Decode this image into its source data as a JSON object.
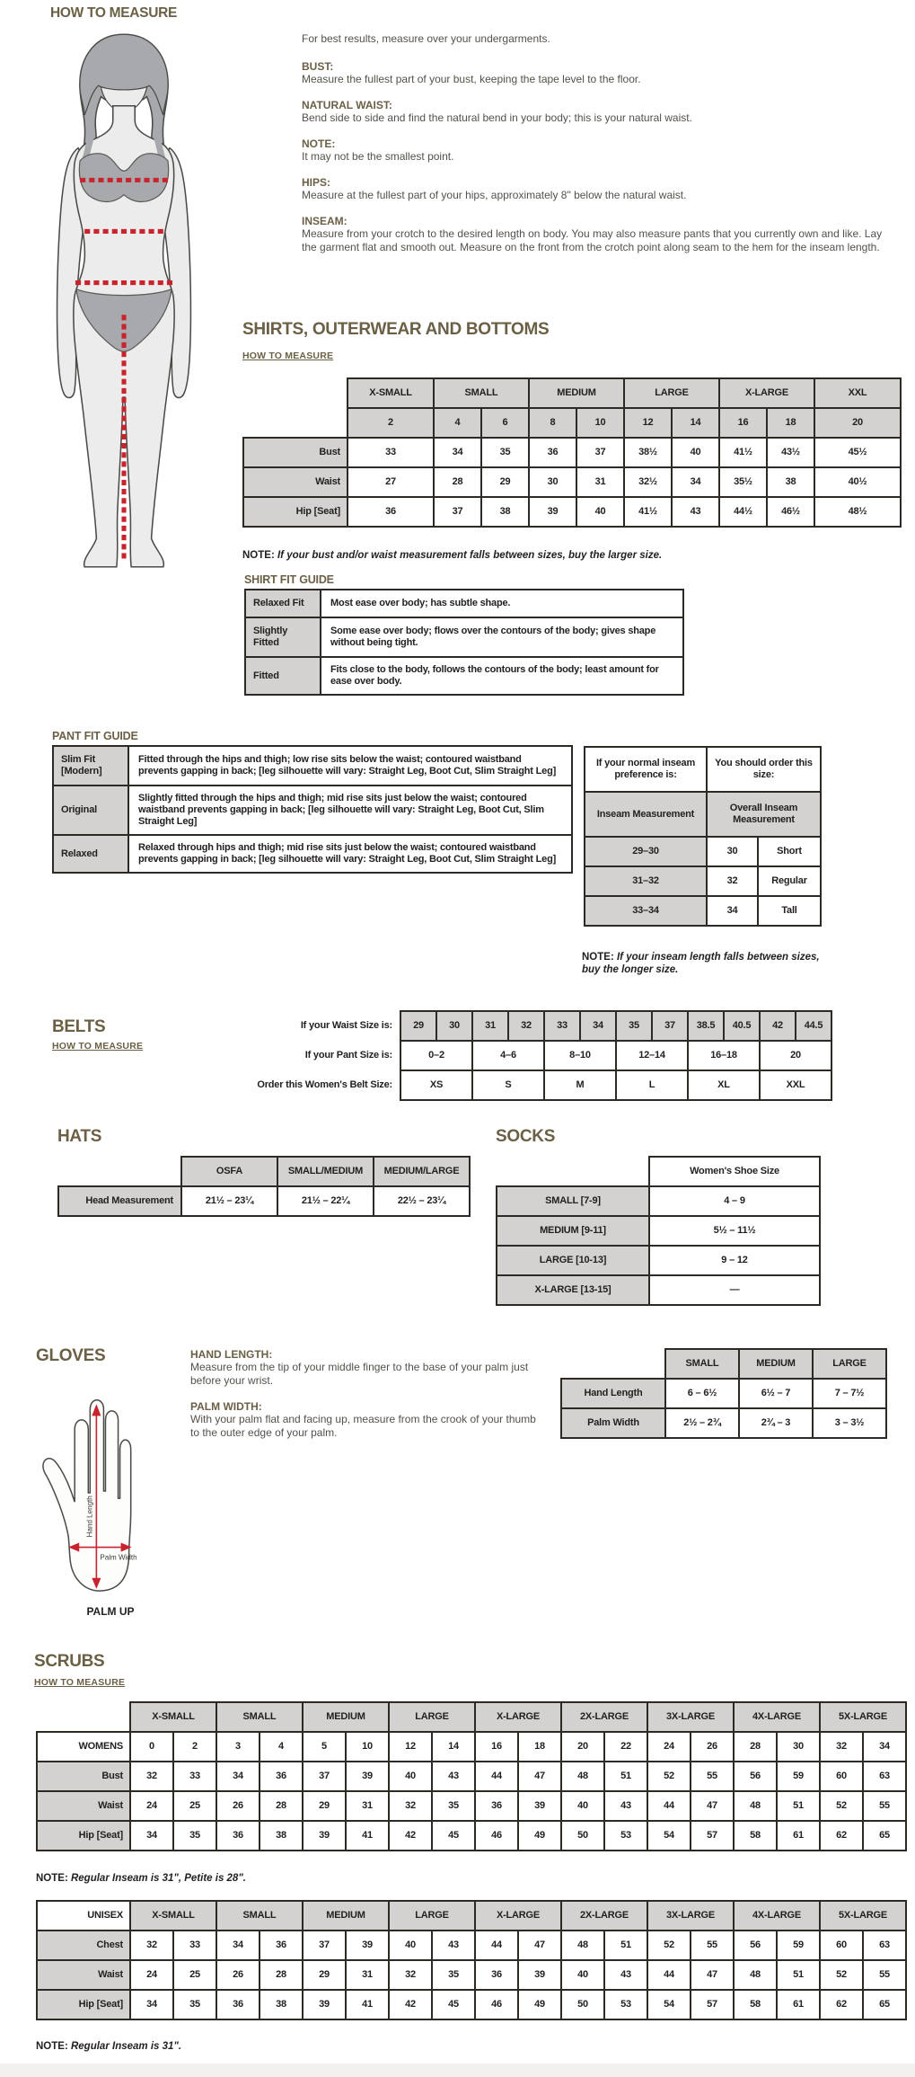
{
  "colors": {
    "accent_olive": "#6b6045",
    "measure_red": "#c9242e",
    "cell_gray": "#d3d2d0",
    "border_dark": "#2d2a26"
  },
  "page": {
    "title": "HOW TO MEASURE",
    "intro": "For best results, measure over your undergarments.",
    "measure_items": [
      {
        "label": "BUST:",
        "text": "Measure the fullest part of your bust, keeping the tape level to the floor."
      },
      {
        "label": "NATURAL WAIST:",
        "text": "Bend side to side and find the natural bend in your body; this is your natural waist."
      },
      {
        "label": "NOTE:",
        "text": "It may not be the smallest point."
      },
      {
        "label": "HIPS:",
        "text": "Measure at the fullest part of your hips, approximately 8\" below the natural waist."
      },
      {
        "label": "INSEAM:",
        "text": "Measure from your crotch to the desired length on body. You may also measure pants that you currently own and like. Lay the garment flat and smooth out. Measure on the front from the crotch point along seam to the hem for the inseam length."
      }
    ]
  },
  "shirts": {
    "title": "SHIRTS, OUTERWEAR AND BOTTOMS",
    "link": "HOW TO MEASURE",
    "groups": [
      {
        "label": "X-SMALL",
        "span": 1
      },
      {
        "label": "SMALL",
        "span": 2
      },
      {
        "label": "MEDIUM",
        "span": 2
      },
      {
        "label": "LARGE",
        "span": 2
      },
      {
        "label": "X-LARGE",
        "span": 2
      },
      {
        "label": "XXL",
        "span": 1
      }
    ],
    "sizes": [
      "2",
      "4",
      "6",
      "8",
      "10",
      "12",
      "14",
      "16",
      "18",
      "20"
    ],
    "rows": [
      {
        "label": "Bust",
        "values": [
          "33",
          "34",
          "35",
          "36",
          "37",
          "38½",
          "40",
          "41½",
          "43½",
          "45½"
        ]
      },
      {
        "label": "Waist",
        "values": [
          "27",
          "28",
          "29",
          "30",
          "31",
          "32½",
          "34",
          "35½",
          "38",
          "40½"
        ]
      },
      {
        "label": "Hip [Seat]",
        "values": [
          "36",
          "37",
          "38",
          "39",
          "40",
          "41½",
          "43",
          "44½",
          "46½",
          "48½"
        ]
      }
    ],
    "note_label": "NOTE:",
    "note": "If your bust and/or waist measurement falls between sizes, buy the larger size."
  },
  "shirt_fit": {
    "title": "SHIRT FIT GUIDE",
    "rows": [
      {
        "label": "Relaxed Fit",
        "text": "Most ease over body; has subtle shape."
      },
      {
        "label": "Slightly Fitted",
        "text": "Some ease over body; flows over the contours of the body; gives shape without being tight."
      },
      {
        "label": "Fitted",
        "text": "Fits close to the body, follows the contours of the body; least amount for ease over body."
      }
    ]
  },
  "pant_fit": {
    "title": "PANT FIT GUIDE",
    "rows": [
      {
        "label": "Slim Fit [Modern]",
        "text": "Fitted through the hips and thigh; low rise sits below the waist; contoured waistband prevents gapping in back; [leg silhouette will vary: Straight Leg, Boot Cut, Slim Straight Leg]"
      },
      {
        "label": "Original",
        "text": "Slightly fitted through the hips and thigh; mid rise sits just below the waist; contoured waistband prevents gapping in back; [leg silhouette will vary: Straight Leg, Boot Cut, Slim Straight Leg]"
      },
      {
        "label": "Relaxed",
        "text": "Relaxed through hips and thigh; mid rise sits just below the waist; contoured waistband prevents gapping in back; [leg silhouette will vary: Straight Leg, Boot Cut, Slim Straight Leg]"
      }
    ]
  },
  "inseam": {
    "col1_header": "If your normal inseam preference is:",
    "col2_header": "You should order this size:",
    "col1_sub": "Inseam Measurement",
    "col2_sub": "Overall Inseam Measurement",
    "rows": [
      {
        "pref": "29–30",
        "size": "30",
        "name": "Short"
      },
      {
        "pref": "31–32",
        "size": "32",
        "name": "Regular"
      },
      {
        "pref": "33–34",
        "size": "34",
        "name": "Tall"
      }
    ],
    "note_label": "NOTE:",
    "note": "If your inseam length falls between sizes, buy the longer size."
  },
  "belts": {
    "title": "BELTS",
    "link": "HOW TO MEASURE",
    "row1_label": "If your Waist Size is:",
    "row1": [
      "29",
      "30",
      "31",
      "32",
      "33",
      "34",
      "35",
      "37",
      "38.5",
      "40.5",
      "42",
      "44.5"
    ],
    "row2_label": "If your Pant Size is:",
    "row2": [
      "0–2",
      "4–6",
      "8–10",
      "12–14",
      "16–18",
      "20"
    ],
    "row3_label": "Order this Women's Belt Size:",
    "row3": [
      "XS",
      "S",
      "M",
      "L",
      "XL",
      "XXL"
    ]
  },
  "hats": {
    "title": "HATS",
    "headers": [
      "OSFA",
      "SMALL/MEDIUM",
      "MEDIUM/LARGE"
    ],
    "row_label": "Head Measurement",
    "values": [
      "21½ – 23¼",
      "21½ – 22¼",
      "22½ – 23¼"
    ]
  },
  "socks": {
    "title": "SOCKS",
    "header": "Women's Shoe Size",
    "rows": [
      {
        "label": "SMALL [7-9]",
        "value": "4 – 9"
      },
      {
        "label": "MEDIUM [9-11]",
        "value": "5½ – 11½"
      },
      {
        "label": "LARGE [10-13]",
        "value": "9 – 12"
      },
      {
        "label": "X-LARGE [13-15]",
        "value": "—"
      }
    ]
  },
  "gloves": {
    "title": "GLOVES",
    "hand_length_label": "HAND LENGTH:",
    "hand_length_text": "Measure from the tip of your middle finger to the base of your palm just before your wrist.",
    "palm_width_label": "PALM WIDTH:",
    "palm_width_text": "With your palm flat and facing up, measure from the crook of your thumb to the outer edge of your palm.",
    "diagram_caption": "PALM UP",
    "diagram_hand_length": "Hand Length",
    "diagram_palm_width": "Palm Width",
    "headers": [
      "SMALL",
      "MEDIUM",
      "LARGE"
    ],
    "rows": [
      {
        "label": "Hand Length",
        "values": [
          "6 – 6½",
          "6½ – 7",
          "7 – 7½"
        ]
      },
      {
        "label": "Palm Width",
        "values": [
          "2½ – 2¾",
          "2¾ – 3",
          "3 – 3½"
        ]
      }
    ]
  },
  "scrubs": {
    "title": "SCRUBS",
    "link": "HOW TO MEASURE",
    "groups": [
      "X-SMALL",
      "SMALL",
      "MEDIUM",
      "LARGE",
      "X-LARGE",
      "2X-LARGE",
      "3X-LARGE",
      "4X-LARGE",
      "5X-LARGE"
    ],
    "womens": {
      "label": "WOMENS",
      "sizes": [
        "0",
        "2",
        "3",
        "4",
        "5",
        "10",
        "12",
        "14",
        "16",
        "18",
        "20",
        "22",
        "24",
        "26",
        "28",
        "30",
        "32",
        "34"
      ],
      "rows": [
        {
          "label": "Bust",
          "values": [
            "32",
            "33",
            "34",
            "36",
            "37",
            "39",
            "40",
            "43",
            "44",
            "47",
            "48",
            "51",
            "52",
            "55",
            "56",
            "59",
            "60",
            "63"
          ]
        },
        {
          "label": "Waist",
          "values": [
            "24",
            "25",
            "26",
            "28",
            "29",
            "31",
            "32",
            "35",
            "36",
            "39",
            "40",
            "43",
            "44",
            "47",
            "48",
            "51",
            "52",
            "55"
          ]
        },
        {
          "label": "Hip [Seat]",
          "values": [
            "34",
            "35",
            "36",
            "38",
            "39",
            "41",
            "42",
            "45",
            "46",
            "49",
            "50",
            "53",
            "54",
            "57",
            "58",
            "61",
            "62",
            "65"
          ]
        }
      ],
      "note_label": "NOTE:",
      "note": "Regular Inseam is 31\", Petite is 28\"."
    },
    "unisex": {
      "label": "UNISEX",
      "rows": [
        {
          "label": "Chest",
          "values": [
            "32",
            "33",
            "34",
            "36",
            "37",
            "39",
            "40",
            "43",
            "44",
            "47",
            "48",
            "51",
            "52",
            "55",
            "56",
            "59",
            "60",
            "63"
          ]
        },
        {
          "label": "Waist",
          "values": [
            "24",
            "25",
            "26",
            "28",
            "29",
            "31",
            "32",
            "35",
            "36",
            "39",
            "40",
            "43",
            "44",
            "47",
            "48",
            "51",
            "52",
            "55"
          ]
        },
        {
          "label": "Hip [Seat]",
          "values": [
            "34",
            "35",
            "36",
            "38",
            "39",
            "41",
            "42",
            "45",
            "46",
            "49",
            "50",
            "53",
            "54",
            "57",
            "58",
            "61",
            "62",
            "65"
          ]
        }
      ],
      "note_label": "NOTE:",
      "note": "Regular Inseam is 31\"."
    }
  }
}
